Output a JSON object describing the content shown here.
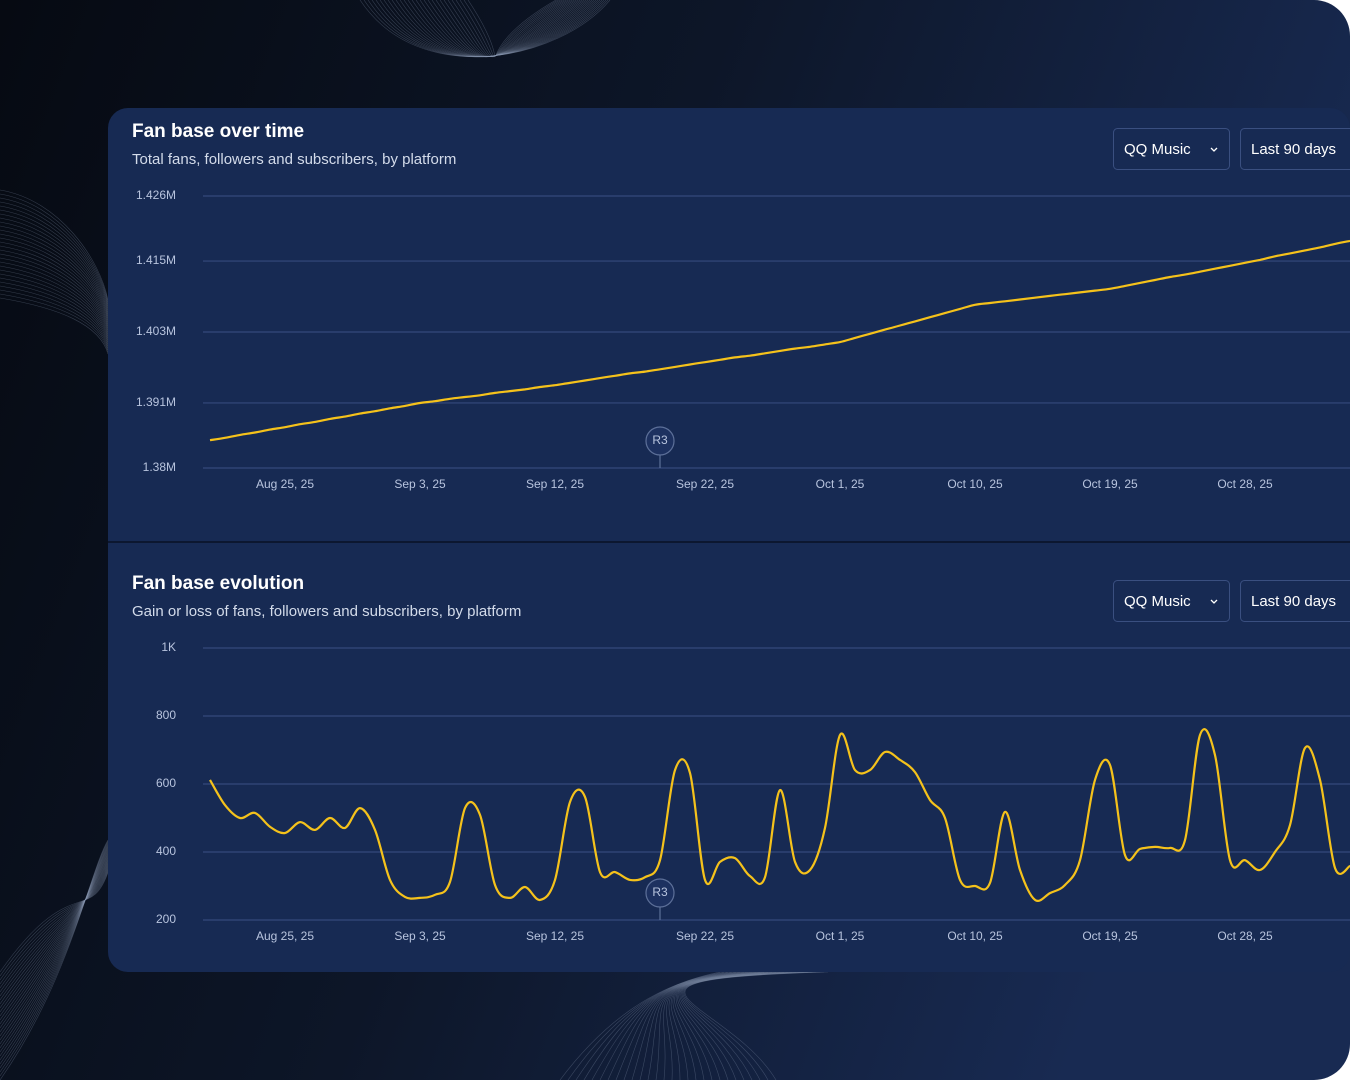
{
  "chart_data": [
    {
      "type": "line",
      "title": "Fan base over time",
      "subtitle": "Total fans, followers and subscribers, by platform",
      "controls": [
        "QQ Music",
        "Last 90 days"
      ],
      "x": [
        "2025-08-20",
        "2025-08-21",
        "2025-08-22",
        "2025-08-23",
        "2025-08-24",
        "2025-08-25",
        "2025-08-26",
        "2025-08-27",
        "2025-08-28",
        "2025-08-29",
        "2025-08-30",
        "2025-08-31",
        "2025-09-01",
        "2025-09-02",
        "2025-09-03",
        "2025-09-04",
        "2025-09-05",
        "2025-09-06",
        "2025-09-07",
        "2025-09-08",
        "2025-09-09",
        "2025-09-10",
        "2025-09-11",
        "2025-09-12",
        "2025-09-13",
        "2025-09-14",
        "2025-09-15",
        "2025-09-16",
        "2025-09-17",
        "2025-09-18",
        "2025-09-19",
        "2025-09-20",
        "2025-09-21",
        "2025-09-22",
        "2025-09-23",
        "2025-09-24",
        "2025-09-25",
        "2025-09-26",
        "2025-09-27",
        "2025-09-28",
        "2025-09-29",
        "2025-09-30",
        "2025-10-01",
        "2025-10-02",
        "2025-10-03",
        "2025-10-04",
        "2025-10-05",
        "2025-10-06",
        "2025-10-07",
        "2025-10-08",
        "2025-10-09",
        "2025-10-10",
        "2025-10-11",
        "2025-10-12",
        "2025-10-13",
        "2025-10-14",
        "2025-10-15",
        "2025-10-16",
        "2025-10-17",
        "2025-10-18",
        "2025-10-19",
        "2025-10-20",
        "2025-10-21",
        "2025-10-22",
        "2025-10-23",
        "2025-10-24",
        "2025-10-25",
        "2025-10-26",
        "2025-10-27",
        "2025-10-28",
        "2025-10-29",
        "2025-10-30",
        "2025-10-31",
        "2025-11-01",
        "2025-11-02",
        "2025-11-03",
        "2025-11-04"
      ],
      "values": [
        1384700,
        1385100,
        1385600,
        1386000,
        1386500,
        1386900,
        1387400,
        1387800,
        1388300,
        1388700,
        1389200,
        1389600,
        1390100,
        1390500,
        1391000,
        1391300,
        1391700,
        1392000,
        1392300,
        1392700,
        1393000,
        1393300,
        1393700,
        1394000,
        1394400,
        1394800,
        1395200,
        1395600,
        1396000,
        1396300,
        1396700,
        1397100,
        1397500,
        1397900,
        1398300,
        1398700,
        1399000,
        1399400,
        1399800,
        1400200,
        1400500,
        1400900,
        1401300,
        1402000,
        1402700,
        1403400,
        1404100,
        1404800,
        1405500,
        1406200,
        1406900,
        1407600,
        1407900,
        1408200,
        1408500,
        1408800,
        1409100,
        1409400,
        1409700,
        1410000,
        1410300,
        1410800,
        1411300,
        1411800,
        1412300,
        1412700,
        1413200,
        1413700,
        1414200,
        1414700,
        1415200,
        1415800,
        1416300,
        1416800,
        1417300,
        1417900,
        1418400
      ],
      "color": "#f5c21b",
      "xlim": [
        "2025-08-20",
        "2025-11-04"
      ],
      "xticks": [
        {
          "value": "2025-08-25",
          "label": "Aug 25, 25"
        },
        {
          "value": "2025-09-03",
          "label": "Sep 3, 25"
        },
        {
          "value": "2025-09-12",
          "label": "Sep 12, 25"
        },
        {
          "value": "2025-09-22",
          "label": "Sep 22, 25"
        },
        {
          "value": "2025-10-01",
          "label": "Oct 1, 25"
        },
        {
          "value": "2025-10-10",
          "label": "Oct 10, 25"
        },
        {
          "value": "2025-10-19",
          "label": "Oct 19, 25"
        },
        {
          "value": "2025-10-28",
          "label": "Oct 28, 25"
        }
      ],
      "ylim": [
        1380000,
        1426000
      ],
      "yticks": [
        {
          "value": 1380000,
          "label": "1.38M"
        },
        {
          "value": 1391000,
          "label": "1.391M"
        },
        {
          "value": 1403000,
          "label": "1.403M"
        },
        {
          "value": 1415000,
          "label": "1.415M"
        },
        {
          "value": 1426000,
          "label": "1.426M"
        }
      ],
      "grid": true,
      "annotations": [
        {
          "text": "R3",
          "x": "2025-09-19"
        }
      ]
    },
    {
      "type": "line",
      "title": "Fan base evolution",
      "subtitle": "Gain or loss of fans, followers and subscribers, by platform",
      "controls": [
        "QQ Music",
        "Last 90 days"
      ],
      "x": [
        "2025-08-20",
        "2025-08-21",
        "2025-08-22",
        "2025-08-23",
        "2025-08-24",
        "2025-08-25",
        "2025-08-26",
        "2025-08-27",
        "2025-08-28",
        "2025-08-29",
        "2025-08-30",
        "2025-08-31",
        "2025-09-01",
        "2025-09-02",
        "2025-09-03",
        "2025-09-04",
        "2025-09-05",
        "2025-09-06",
        "2025-09-07",
        "2025-09-08",
        "2025-09-09",
        "2025-09-10",
        "2025-09-11",
        "2025-09-12",
        "2025-09-13",
        "2025-09-14",
        "2025-09-15",
        "2025-09-16",
        "2025-09-17",
        "2025-09-18",
        "2025-09-19",
        "2025-09-20",
        "2025-09-21",
        "2025-09-22",
        "2025-09-23",
        "2025-09-24",
        "2025-09-25",
        "2025-09-26",
        "2025-09-27",
        "2025-09-28",
        "2025-09-29",
        "2025-09-30",
        "2025-10-01",
        "2025-10-02",
        "2025-10-03",
        "2025-10-04",
        "2025-10-05",
        "2025-10-06",
        "2025-10-07",
        "2025-10-08",
        "2025-10-09",
        "2025-10-10",
        "2025-10-11",
        "2025-10-12",
        "2025-10-13",
        "2025-10-14",
        "2025-10-15",
        "2025-10-16",
        "2025-10-17",
        "2025-10-18",
        "2025-10-19",
        "2025-10-20",
        "2025-10-21",
        "2025-10-22",
        "2025-10-23",
        "2025-10-24",
        "2025-10-25",
        "2025-10-26",
        "2025-10-27",
        "2025-10-28",
        "2025-10-29",
        "2025-10-30",
        "2025-10-31",
        "2025-11-01",
        "2025-11-02",
        "2025-11-03",
        "2025-11-04"
      ],
      "values": [
        612,
        538,
        500,
        515,
        474,
        456,
        488,
        465,
        500,
        471,
        529,
        465,
        318,
        268,
        265,
        274,
        312,
        529,
        509,
        303,
        265,
        297,
        259,
        318,
        547,
        562,
        341,
        341,
        318,
        326,
        376,
        641,
        632,
        318,
        371,
        382,
        329,
        326,
        582,
        371,
        347,
        471,
        744,
        641,
        641,
        694,
        671,
        635,
        553,
        500,
        318,
        300,
        309,
        518,
        347,
        259,
        279,
        303,
        376,
        612,
        656,
        391,
        409,
        415,
        412,
        435,
        744,
        685,
        376,
        376,
        347,
        400,
        479,
        706,
        612,
        353,
        359
      ],
      "color": "#f5c21b",
      "xlim": [
        "2025-08-20",
        "2025-11-04"
      ],
      "xticks": [
        {
          "value": "2025-08-25",
          "label": "Aug 25, 25"
        },
        {
          "value": "2025-09-03",
          "label": "Sep 3, 25"
        },
        {
          "value": "2025-09-12",
          "label": "Sep 12, 25"
        },
        {
          "value": "2025-09-22",
          "label": "Sep 22, 25"
        },
        {
          "value": "2025-10-01",
          "label": "Oct 1, 25"
        },
        {
          "value": "2025-10-10",
          "label": "Oct 10, 25"
        },
        {
          "value": "2025-10-19",
          "label": "Oct 19, 25"
        },
        {
          "value": "2025-10-28",
          "label": "Oct 28, 25"
        }
      ],
      "ylim": [
        200,
        1000
      ],
      "yticks": [
        200,
        400,
        600,
        800,
        {
          "value": 1000,
          "label": "1K"
        }
      ],
      "grid": true,
      "annotations": [
        {
          "text": "R3",
          "x": "2025-09-19"
        }
      ]
    }
  ]
}
